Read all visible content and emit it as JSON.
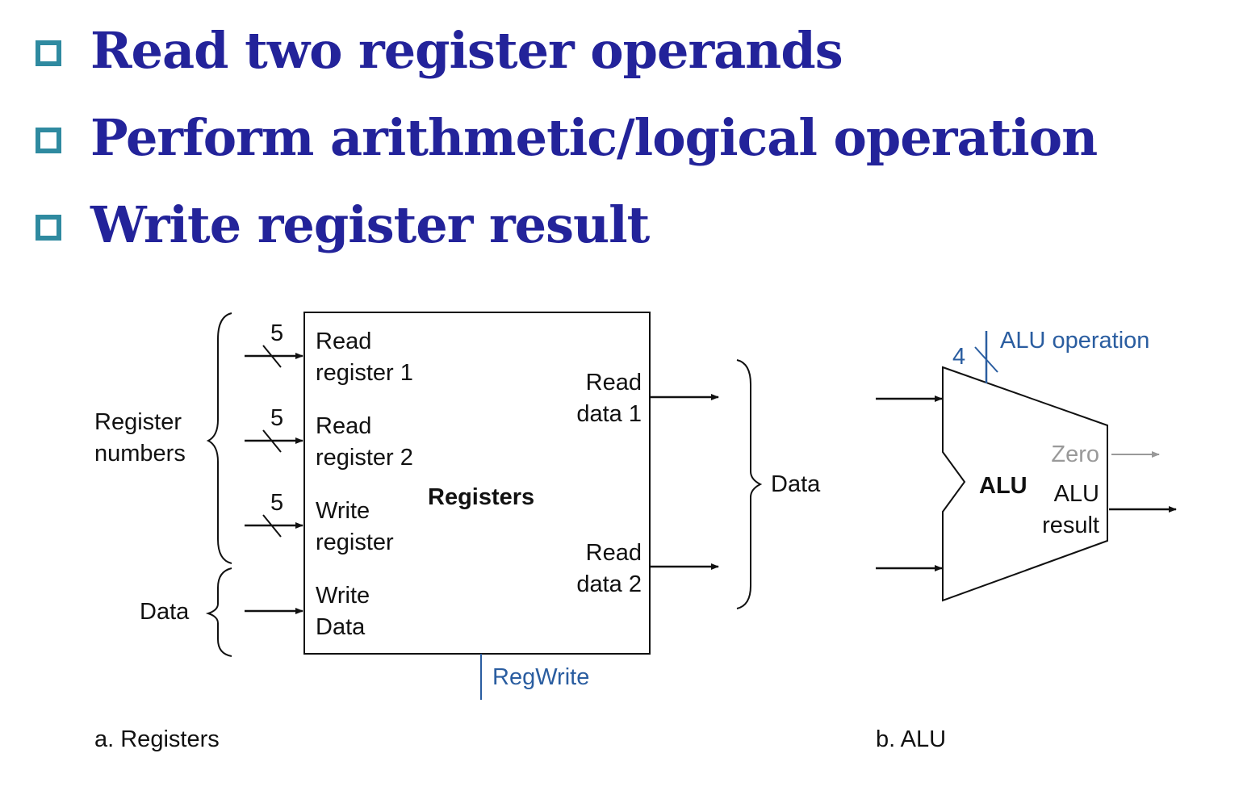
{
  "bullets": [
    "Read two register operands",
    "Perform arithmetic/logical operation",
    "Write register result"
  ],
  "registers": {
    "title": "Registers",
    "inputs": {
      "read_register_1": [
        "Read",
        "register 1"
      ],
      "read_register_2": [
        "Read",
        "register 2"
      ],
      "write_register": [
        "Write",
        "register"
      ],
      "write_data": [
        "Write",
        "Data"
      ]
    },
    "outputs": {
      "read_data_1": [
        "Read",
        "data 1"
      ],
      "read_data_2": [
        "Read",
        "data 2"
      ]
    },
    "bus_width": "5",
    "group_register_numbers": [
      "Register",
      "numbers"
    ],
    "group_data_in": "Data",
    "group_data_out": "Data",
    "control": "RegWrite",
    "caption": "a. Registers"
  },
  "alu": {
    "title": "ALU",
    "control": "ALU operation",
    "control_width": "4",
    "zero": "Zero",
    "result": [
      "ALU",
      "result"
    ],
    "caption": "b. ALU"
  },
  "colors": {
    "heading": "#23239a",
    "bullet_box": "#2f8aa0",
    "control_blue": "#2a5da0",
    "zero_gray": "#999999"
  }
}
